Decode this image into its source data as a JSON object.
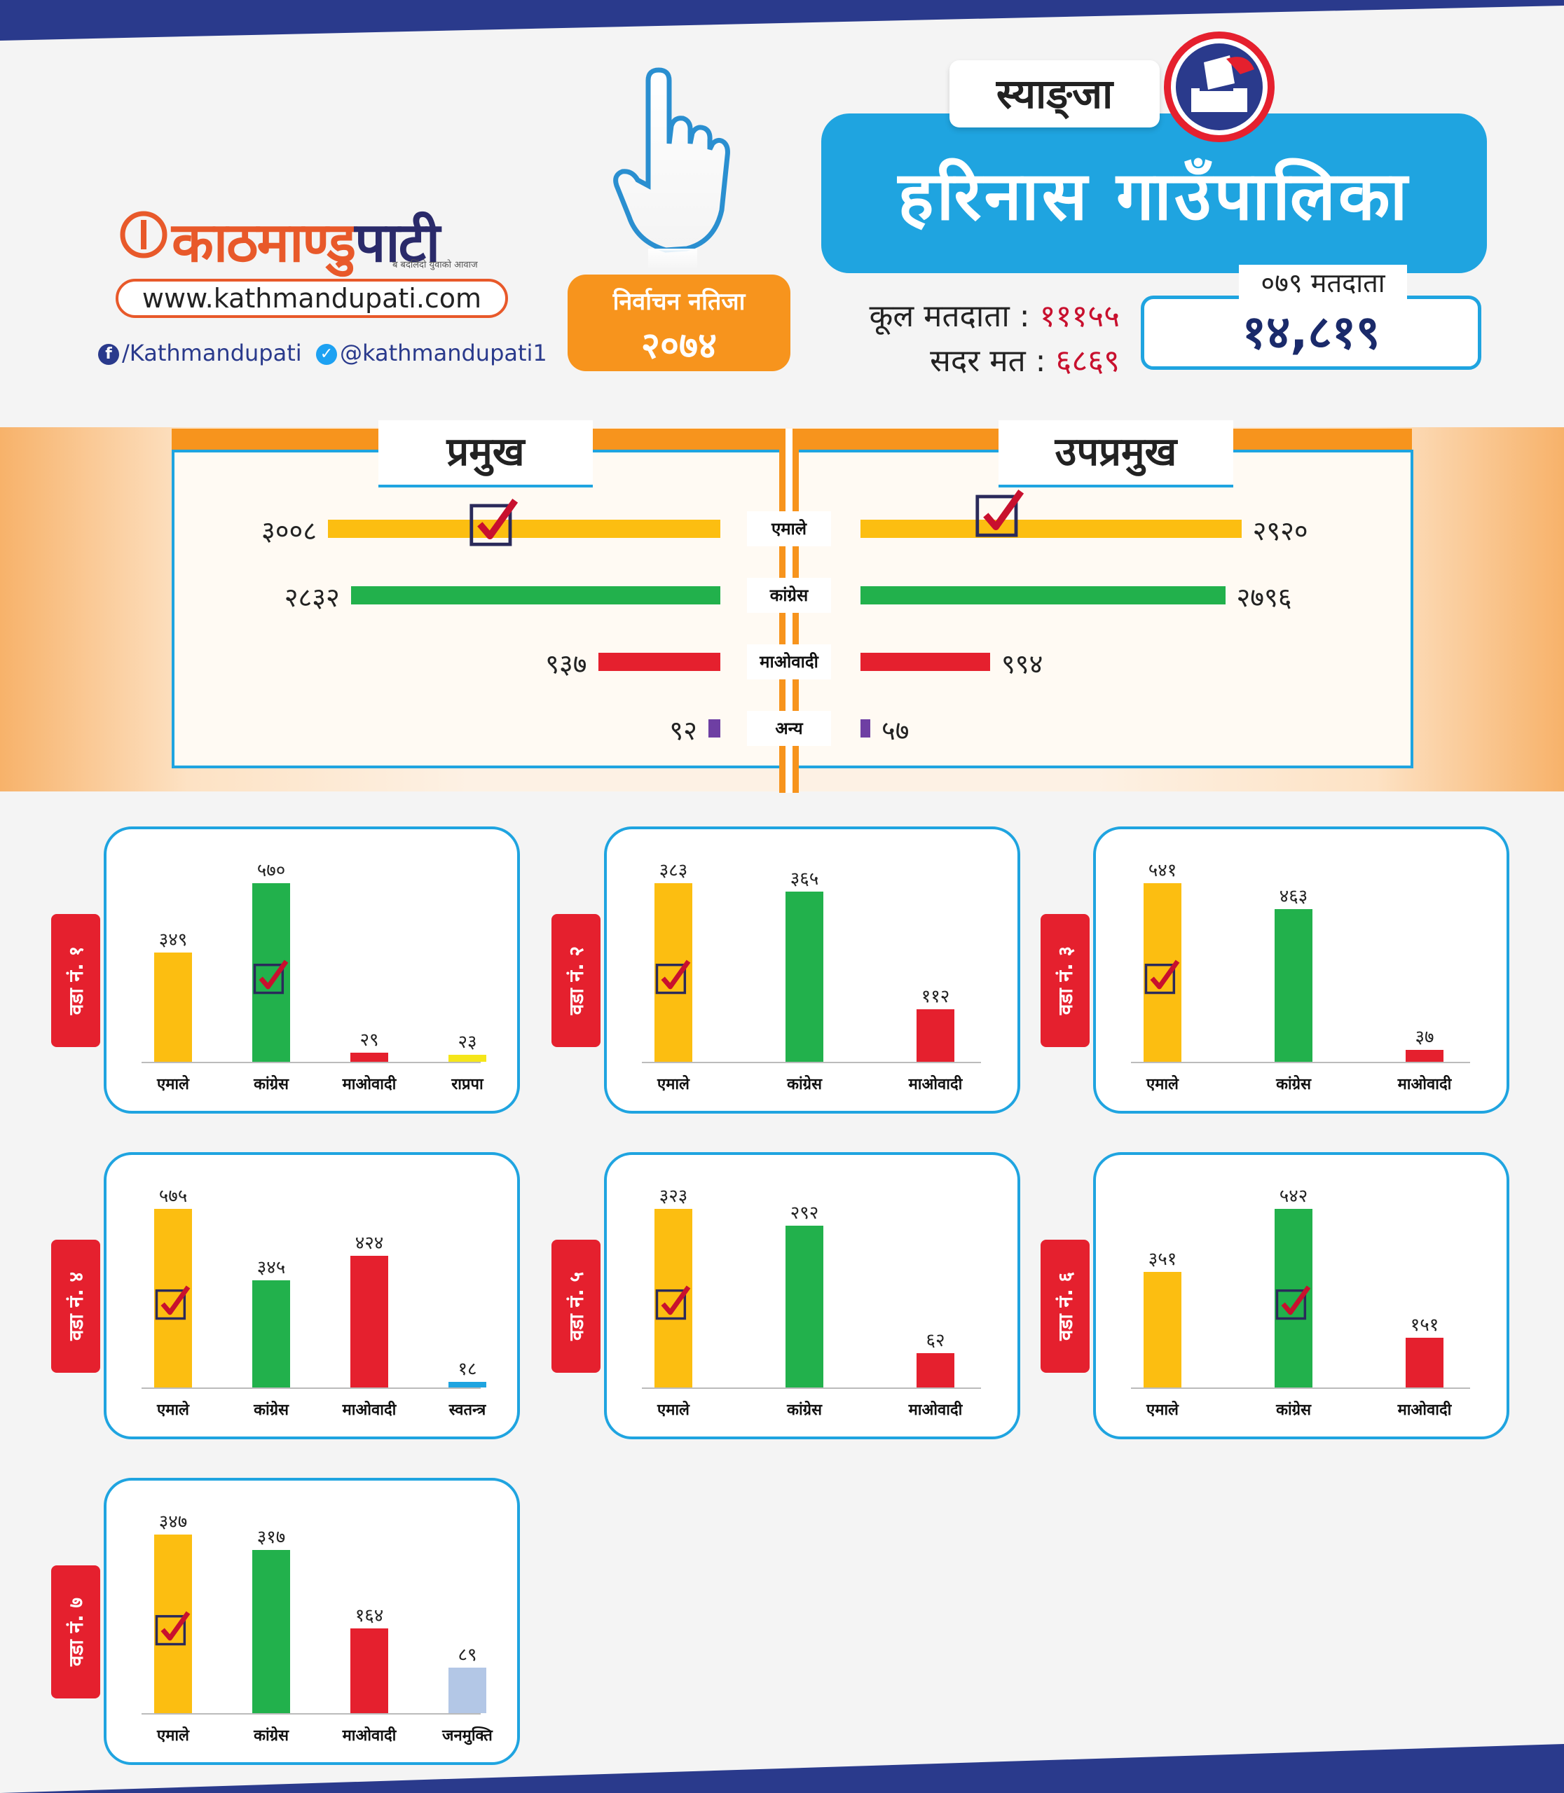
{
  "header": {
    "logo": {
      "part1": "काठमाण्डु",
      "part2": "पाटी",
      "tagline": "ब बदलिंदो युवाको आवाज"
    },
    "website": "www.kathmandupati.com",
    "facebook": "/Kathmandupati",
    "twitter": "@kathmandupati1",
    "badge": {
      "line1": "निर्वाचन नतिजा",
      "line2": "२०७४"
    },
    "district": "स्याङ्जा",
    "municipality": "हरिनास गाउँपालिका",
    "total_voters_label": "कूल मतदाता :",
    "total_voters": "१११५५",
    "valid_votes_label": "सदर मत :",
    "valid_votes": "६८६९",
    "voters_079_label": "०७९ मतदाता",
    "voters_079": "१४,८१९"
  },
  "colors": {
    "uml": "#fcbe11",
    "congress": "#22b14c",
    "maoist": "#e5202e",
    "other": "#6e3fa3",
    "rpp": "#f5e61a",
    "independent": "#1fa4e0",
    "janamukti": "#b3c7e6",
    "accent": "#1fa4e0",
    "orange": "#f7941d"
  },
  "chart_data": [
    {
      "type": "bar",
      "title": "प्रमुख / उपप्रमुख",
      "categories": [
        "एमाले",
        "कांग्रेस",
        "माओवादी",
        "अन्य"
      ],
      "series": [
        {
          "name": "प्रमुख",
          "values": [
            3008,
            2832,
            937,
            92
          ],
          "labels": [
            "३००८",
            "२८३२",
            "९३७",
            "९२"
          ],
          "winner_index": 0
        },
        {
          "name": "उपप्रमुख",
          "values": [
            2920,
            2796,
            994,
            57
          ],
          "labels": [
            "२९२०",
            "२७९६",
            "९९४",
            "५७"
          ],
          "winner_index": 0
        }
      ],
      "xlim": [
        0,
        3008
      ]
    },
    {
      "type": "bar",
      "ward": "वडा नं. १",
      "categories": [
        "एमाले",
        "कांग्रेस",
        "माओवादी",
        "राप्रपा"
      ],
      "values": [
        349,
        570,
        29,
        23
      ],
      "labels": [
        "३४९",
        "५७०",
        "२९",
        "२३"
      ],
      "colors": [
        "uml",
        "congress",
        "maoist",
        "rpp"
      ],
      "winner_index": 1
    },
    {
      "type": "bar",
      "ward": "वडा नं. २",
      "categories": [
        "एमाले",
        "कांग्रेस",
        "माओवादी"
      ],
      "values": [
        383,
        365,
        112
      ],
      "labels": [
        "३८३",
        "३६५",
        "११२"
      ],
      "colors": [
        "uml",
        "congress",
        "maoist"
      ],
      "winner_index": 0
    },
    {
      "type": "bar",
      "ward": "वडा नं. ३",
      "categories": [
        "एमाले",
        "कांग्रेस",
        "माओवादी"
      ],
      "values": [
        541,
        463,
        37
      ],
      "labels": [
        "५४१",
        "४६३",
        "३७"
      ],
      "colors": [
        "uml",
        "congress",
        "maoist"
      ],
      "winner_index": 0
    },
    {
      "type": "bar",
      "ward": "वडा नं. ४",
      "categories": [
        "एमाले",
        "कांग्रेस",
        "माओवादी",
        "स्वतन्त्र"
      ],
      "values": [
        575,
        345,
        424,
        18
      ],
      "labels": [
        "५७५",
        "३४५",
        "४२४",
        "१८"
      ],
      "colors": [
        "uml",
        "congress",
        "maoist",
        "independent"
      ],
      "winner_index": 0
    },
    {
      "type": "bar",
      "ward": "वडा नं. ५",
      "categories": [
        "एमाले",
        "कांग्रेस",
        "माओवादी"
      ],
      "values": [
        323,
        292,
        62
      ],
      "labels": [
        "३२३",
        "२९२",
        "६२"
      ],
      "colors": [
        "uml",
        "congress",
        "maoist"
      ],
      "winner_index": 0
    },
    {
      "type": "bar",
      "ward": "वडा नं. ६",
      "categories": [
        "एमाले",
        "कांग्रेस",
        "माओवादी"
      ],
      "values": [
        351,
        542,
        151
      ],
      "labels": [
        "३५१",
        "५४२",
        "१५१"
      ],
      "colors": [
        "uml",
        "congress",
        "maoist"
      ],
      "winner_index": 1
    },
    {
      "type": "bar",
      "ward": "वडा नं. ७",
      "categories": [
        "एमाले",
        "कांग्रेस",
        "माओवादी",
        "जनमुक्ति"
      ],
      "values": [
        347,
        317,
        164,
        89
      ],
      "labels": [
        "३४७",
        "३१७",
        "१६४",
        "८९"
      ],
      "colors": [
        "uml",
        "congress",
        "maoist",
        "janamukti"
      ],
      "winner_index": 0
    }
  ]
}
